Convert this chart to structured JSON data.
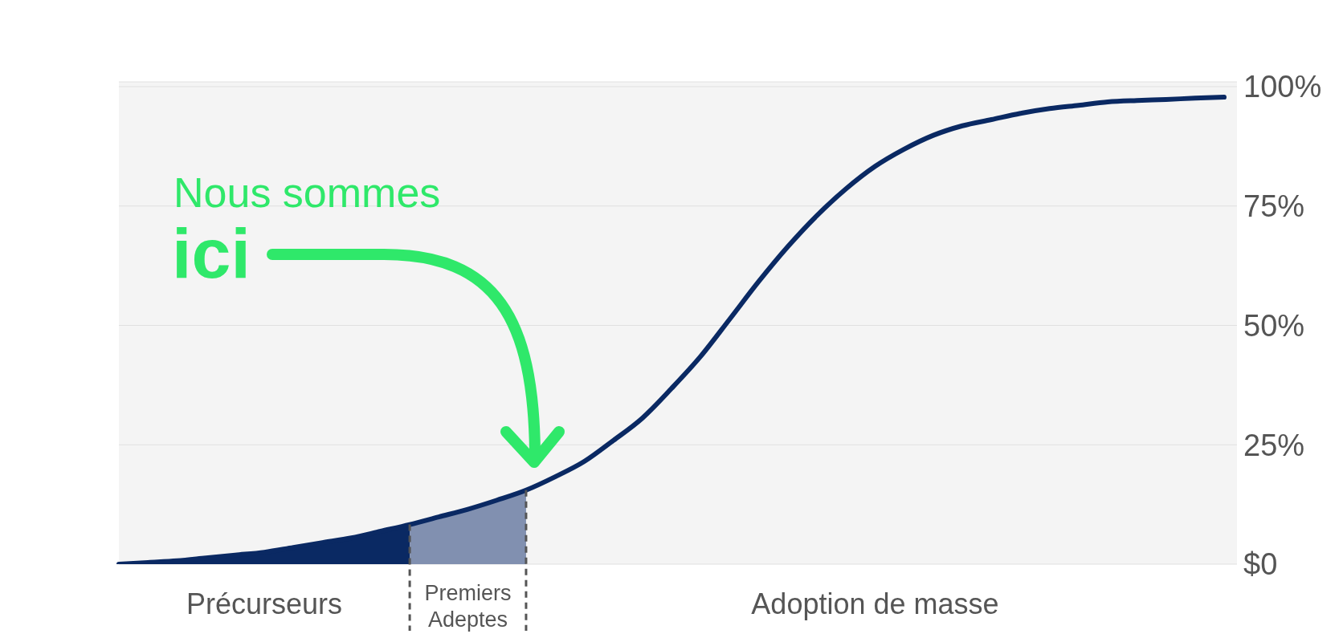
{
  "chart_data": {
    "type": "line",
    "ylim": [
      0,
      101
    ],
    "categories": [
      null,
      null,
      null,
      null,
      null,
      "Précurseurs",
      null,
      null,
      null,
      null,
      null,
      null,
      "Premiers Adeptes",
      null,
      null,
      null,
      null,
      null,
      null,
      null,
      null,
      null,
      null,
      null,
      null,
      null,
      "Adoption de masse",
      null,
      null,
      null,
      null,
      null,
      null,
      null,
      null,
      null,
      null,
      null,
      null
    ],
    "yticks": [
      {
        "value": 0,
        "label": "$0"
      },
      {
        "value": 25,
        "label": "25%"
      },
      {
        "value": 50,
        "label": "50%"
      },
      {
        "value": 75,
        "label": "75%"
      },
      {
        "value": 100,
        "label": "100%"
      }
    ],
    "grid": "y",
    "marker": "none",
    "series": [
      {
        "type": "area",
        "color": "#0a2963",
        "values": [
          0,
          0.35,
          0.7,
          1.3,
          1.9,
          2.5,
          3.5,
          4.5,
          5.5,
          6.9,
          8.3,
          null,
          null,
          null,
          null,
          null,
          null,
          null,
          null,
          null,
          null,
          null,
          null,
          null,
          null,
          null,
          null,
          null,
          null,
          null,
          null,
          null,
          null,
          null,
          null,
          null,
          null,
          null,
          null
        ]
      },
      {
        "type": "area",
        "color": "#8190b0",
        "values": [
          null,
          null,
          null,
          null,
          null,
          null,
          null,
          null,
          null,
          null,
          8.3,
          9.9,
          11.5,
          13.4,
          15.5,
          null,
          null,
          null,
          null,
          null,
          null,
          null,
          null,
          null,
          null,
          null,
          null,
          null,
          null,
          null,
          null,
          null,
          null,
          null,
          null,
          null,
          null,
          null,
          null
        ]
      },
      {
        "color": "#0a2963",
        "values": [
          0,
          0.35,
          0.7,
          1.3,
          1.9,
          2.5,
          3.5,
          4.5,
          5.5,
          6.9,
          8.3,
          9.9,
          11.5,
          13.4,
          15.5,
          18.3,
          21.5,
          25.9,
          30.6,
          36.8,
          43.5,
          51.3,
          59.2,
          66.5,
          73,
          78.6,
          83.3,
          86.9,
          89.8,
          91.8,
          93.1,
          94.4,
          95.4,
          96.1,
          96.8,
          97.1,
          97.3,
          97.6,
          97.8
        ]
      }
    ],
    "annotations": [
      "Nous sommes",
      "ici"
    ]
  }
}
